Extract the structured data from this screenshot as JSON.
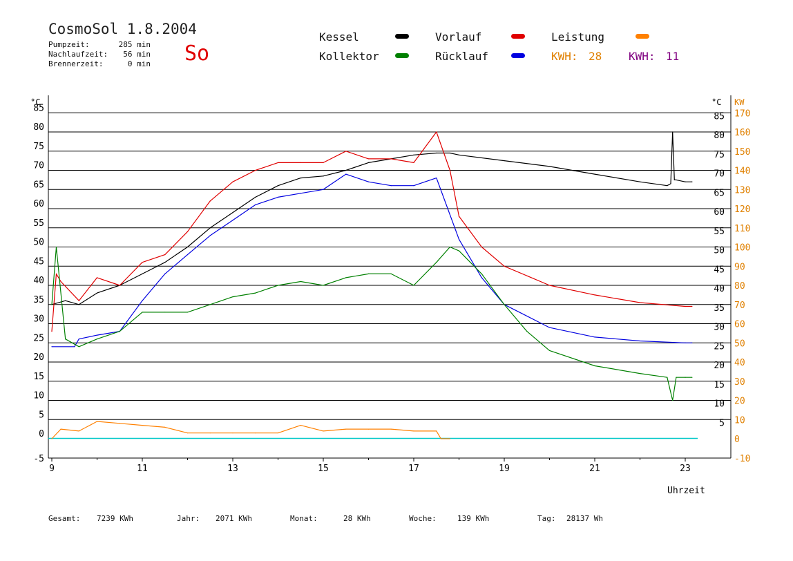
{
  "header": {
    "title": "CosmoSol 1.8.2004",
    "day": "So",
    "info": [
      {
        "label": "Pumpzeit:",
        "value": "285 min"
      },
      {
        "label": "Nachlaufzeit:",
        "value": "56 min"
      },
      {
        "label": "Brennerzeit:",
        "value": "0 min"
      }
    ]
  },
  "legend": {
    "kessel": {
      "label": "Kessel",
      "color": "#000000"
    },
    "kollektor": {
      "label": "Kollektor",
      "color": "#008000"
    },
    "vorlauf": {
      "label": "Vorlauf",
      "color": "#e00000"
    },
    "ruecklauf": {
      "label": "Rücklauf",
      "color": "#0000e0"
    },
    "leistung": {
      "label": "Leistung",
      "color": "#ff8000"
    },
    "kwh1": {
      "label": "KWH:",
      "value": "28",
      "color": "#e08000"
    },
    "kwh2": {
      "label": "KWH:",
      "value": "11",
      "color": "#800080"
    }
  },
  "footer": [
    {
      "label": "Gesamt:",
      "value": "7239 KWh"
    },
    {
      "label": "Jahr:",
      "value": "2071 KWh"
    },
    {
      "label": "Monat:",
      "value": "28 KWh"
    },
    {
      "label": "Woche:",
      "value": "139 KWh"
    },
    {
      "label": "Tag:",
      "value": "28137 Wh"
    }
  ],
  "chart_data": {
    "type": "line",
    "xlabel": "Uhrzeit",
    "ylabel_left": "°C",
    "ylabel_right_1": "°C",
    "ylabel_right_2": "KW",
    "xlim": [
      9,
      24
    ],
    "ylim": [
      -5,
      85
    ],
    "y2lim": [
      -10,
      170
    ],
    "x_ticks": [
      9,
      11,
      13,
      15,
      17,
      19,
      21,
      23
    ],
    "y_ticks": [
      -5,
      0,
      5,
      10,
      15,
      20,
      25,
      30,
      35,
      40,
      45,
      50,
      55,
      60,
      65,
      70,
      75,
      80,
      85
    ],
    "y_ticks_right": [
      5,
      10,
      15,
      20,
      25,
      30,
      35,
      40,
      45,
      50,
      55,
      60,
      65,
      70,
      75,
      80,
      85
    ],
    "y2_ticks": [
      -10,
      0,
      10,
      20,
      30,
      40,
      50,
      60,
      70,
      80,
      90,
      100,
      110,
      120,
      130,
      140,
      150,
      160,
      170
    ],
    "grid": "horizontal",
    "series": [
      {
        "name": "Kessel",
        "color": "#000000",
        "x": [
          9,
          9.3,
          9.6,
          10,
          10.5,
          11,
          11.5,
          12,
          12.5,
          13,
          13.5,
          14,
          14.5,
          15,
          15.5,
          16,
          16.5,
          17,
          17.5,
          17.8,
          18,
          19,
          20,
          21,
          22,
          22.6,
          22.68,
          22.72,
          22.76,
          22.8,
          23,
          23.15
        ],
        "y": [
          35,
          36,
          35,
          38,
          40,
          43,
          46,
          50,
          55,
          59,
          63,
          66,
          68,
          68.5,
          70,
          72,
          73,
          74,
          74.5,
          74.5,
          74,
          72.5,
          71,
          69,
          67,
          66,
          66.5,
          80,
          67.5,
          67.5,
          67,
          67
        ]
      },
      {
        "name": "Vorlauf",
        "color": "#e00000",
        "x": [
          9,
          9.1,
          9.2,
          9.6,
          10,
          10.5,
          11,
          11.5,
          12,
          12.5,
          13,
          13.5,
          14,
          14.5,
          15,
          15.5,
          16,
          16.5,
          17,
          17.5,
          17.8,
          18,
          18.5,
          19,
          20,
          21,
          22,
          23,
          23.15
        ],
        "y": [
          28,
          43,
          41,
          36,
          42,
          40,
          46,
          48,
          54,
          62,
          67,
          70,
          72,
          72,
          72,
          75,
          73,
          73,
          72,
          80,
          70,
          58,
          50,
          45,
          40,
          37.5,
          35.5,
          34.5,
          34.5
        ]
      },
      {
        "name": "Rücklauf",
        "color": "#0000e0",
        "x": [
          9,
          9.5,
          9.6,
          10,
          10.5,
          11,
          11.5,
          12,
          12.5,
          13,
          13.5,
          14,
          14.5,
          15,
          15.5,
          16,
          16.5,
          17,
          17.5,
          18,
          18.5,
          19,
          20,
          21,
          22,
          23,
          23.15
        ],
        "y": [
          24,
          24,
          26,
          27,
          28,
          36,
          43,
          48,
          53,
          57,
          61,
          63,
          64,
          65,
          69,
          67,
          66,
          66,
          68,
          52,
          42,
          35,
          29,
          26.5,
          25.5,
          25,
          25
        ]
      },
      {
        "name": "Kollektor",
        "color": "#008000",
        "x": [
          9,
          9.1,
          9.3,
          9.6,
          10,
          10.5,
          11,
          11.5,
          12,
          12.5,
          13,
          13.5,
          14,
          14.5,
          15,
          15.5,
          16,
          16.5,
          17,
          17.5,
          17.8,
          18,
          18.5,
          19,
          19.5,
          20,
          21,
          22,
          22.6,
          22.72,
          22.8,
          23,
          23.15
        ],
        "y": [
          35,
          50,
          26,
          24,
          26,
          28,
          33,
          33,
          33,
          35,
          37,
          38,
          40,
          41,
          40,
          42,
          43,
          43,
          40,
          46,
          50,
          49,
          43,
          35,
          28,
          23,
          19,
          17,
          16,
          10,
          16,
          16,
          16
        ]
      },
      {
        "name": "Leistung",
        "color": "#ff8000",
        "x": [
          9,
          9.2,
          9.6,
          10,
          10.5,
          11,
          11.5,
          12,
          12.5,
          13,
          13.5,
          14,
          14.5,
          15,
          15.5,
          16,
          16.5,
          17,
          17.5,
          17.6,
          17.8
        ],
        "y": [
          0,
          5,
          4,
          9,
          8,
          7,
          6,
          3,
          3,
          3,
          3,
          3,
          7,
          4,
          5,
          5,
          5,
          4,
          4,
          0,
          0
        ]
      }
    ]
  }
}
